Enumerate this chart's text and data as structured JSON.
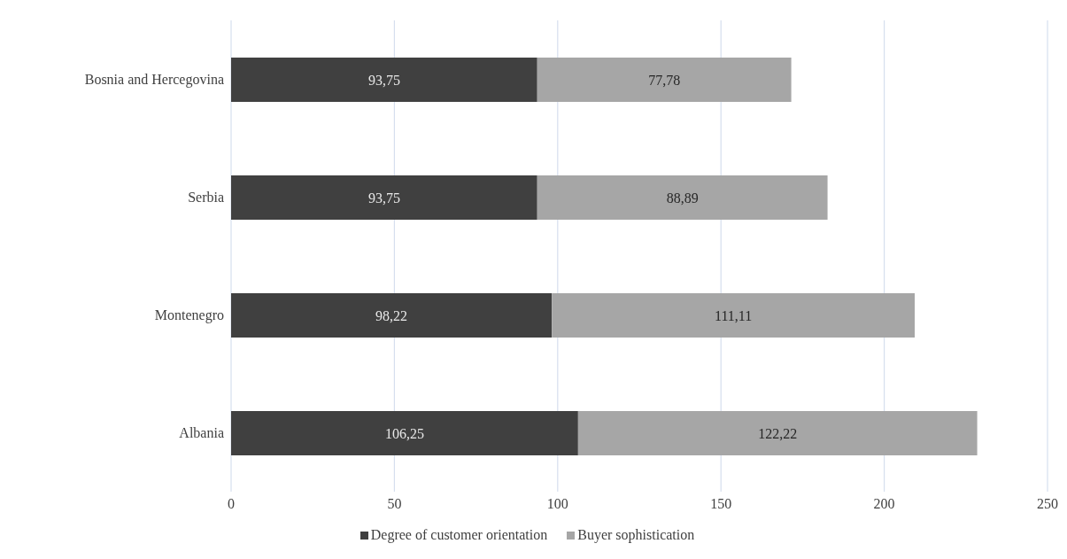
{
  "chart_data": {
    "type": "bar",
    "orientation": "horizontal",
    "stacked": true,
    "categories": [
      "Bosnia and Hercegovina",
      "Serbia",
      "Montenegro",
      "Albania"
    ],
    "series": [
      {
        "name": "Degree of customer orientation",
        "color": "#404040",
        "values": [
          93.75,
          93.75,
          98.22,
          106.25
        ],
        "value_labels": [
          "93,75",
          "93,75",
          "98,22",
          "106,25"
        ]
      },
      {
        "name": "Buyer sophistication",
        "color": "#a6a6a6",
        "values": [
          77.78,
          88.89,
          111.11,
          122.22
        ],
        "value_labels": [
          "77,78",
          "88,89",
          "111,11",
          "122,22"
        ]
      }
    ],
    "xlim": [
      0,
      250
    ],
    "xticks": [
      0,
      50,
      100,
      150,
      200,
      250
    ],
    "grid": "x",
    "legend": "bottom"
  }
}
